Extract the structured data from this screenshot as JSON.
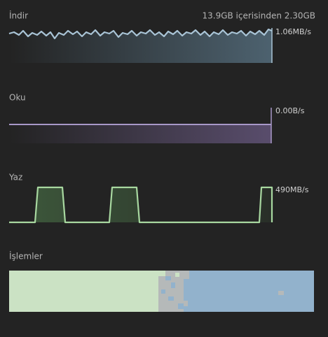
{
  "download": {
    "label": "İndir",
    "summary": "13.9GB içerisinden 2.30GB",
    "rate": "1.06MB/s"
  },
  "read": {
    "label": "Oku",
    "rate": "0.00B/s"
  },
  "write": {
    "label": "Yaz",
    "rate": "490MB/s"
  },
  "operations": {
    "label": "İşlemler"
  }
}
